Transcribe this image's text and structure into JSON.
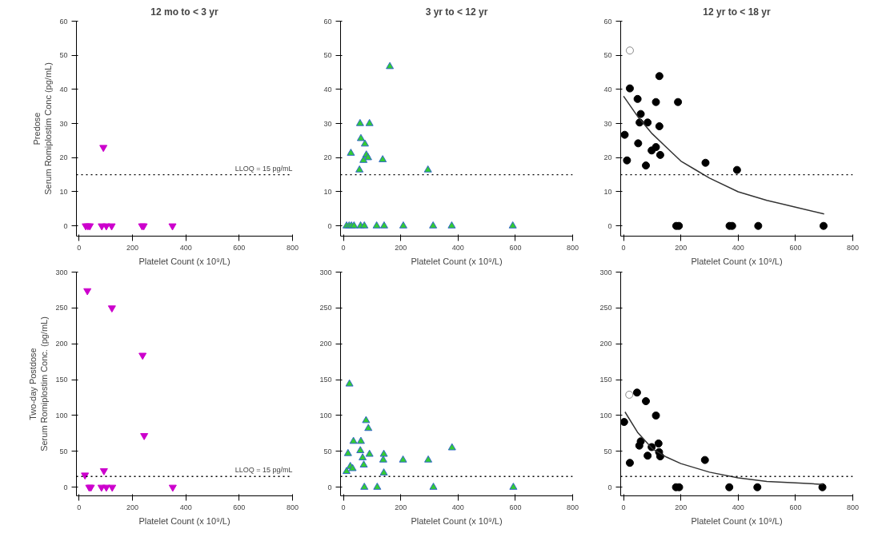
{
  "chart_data": [
    {
      "type": "scatter",
      "title": "12 mo to < 3 yr",
      "xlabel": "Platelet Count (x 10⁹/L)",
      "ylabel": "Predose\nSerum Romiplostim Conc (pg/mL)",
      "xlim": [
        -10,
        800
      ],
      "ylim": [
        -3,
        60
      ],
      "xticks": [
        0,
        200,
        400,
        600,
        800
      ],
      "yticks": [
        0,
        10,
        20,
        30,
        40,
        50,
        60
      ],
      "grid": false,
      "marker": "triangle",
      "series": [
        {
          "color": "#cc00cc",
          "x": [
            25,
            33,
            40,
            85,
            102,
            122,
            236,
            242,
            350,
            91
          ],
          "values": [
            0,
            0,
            0,
            0,
            0,
            0,
            0,
            0,
            0,
            23
          ]
        }
      ],
      "ref_lines": [
        {
          "axis": "y",
          "value": 15,
          "label": "LLOQ = 15 pg/mL",
          "line_style": "dotted",
          "color": "#000000"
        }
      ]
    },
    {
      "type": "scatter",
      "title": "3 yr to < 12 yr",
      "xlabel": "Platelet Count (x 10⁹/L)",
      "xlim": [
        -10,
        800
      ],
      "ylim": [
        -3,
        60
      ],
      "xticks": [
        0,
        200,
        400,
        600,
        800
      ],
      "yticks": [
        0,
        10,
        20,
        30,
        40,
        50,
        60
      ],
      "grid": false,
      "marker": "triangle",
      "series": [
        {
          "color": "#33cc33",
          "x": [
            162,
            58,
            91,
            61,
            75,
            26,
            80,
            86,
            70,
            137,
            56,
            295,
            11,
            20,
            28,
            37,
            60,
            73,
            116,
            142,
            209,
            313,
            378,
            591
          ],
          "values": [
            46.7,
            30,
            30,
            25.6,
            24,
            21.3,
            20.8,
            20,
            19.2,
            19.4,
            16.4,
            16.4,
            0,
            0,
            0,
            0,
            0,
            0,
            0,
            0,
            0,
            0,
            0,
            0
          ]
        }
      ],
      "ref_lines": [
        {
          "axis": "y",
          "value": 15,
          "line_style": "dotted",
          "color": "#000000"
        }
      ]
    },
    {
      "type": "scatter",
      "title": "12 yr to < 18 yr",
      "xlabel": "Platelet Count (x 10⁹/L)",
      "xlim": [
        -10,
        800
      ],
      "ylim": [
        -3,
        60
      ],
      "xticks": [
        0,
        200,
        400,
        600,
        800
      ],
      "yticks": [
        0,
        10,
        20,
        30,
        40,
        50,
        60
      ],
      "grid": false,
      "marker": "circle",
      "series": [
        {
          "color": "#ffffff",
          "x": [
            22
          ],
          "values": [
            51.4
          ]
        },
        {
          "color": "#000000",
          "x": [
            22,
            4,
            12,
            49,
            60,
            56,
            84,
            51,
            78,
            98,
            113,
            113,
            125,
            125,
            128,
            190,
            286,
            396,
            184,
            193,
            370,
            379,
            470,
            698
          ],
          "values": [
            40.3,
            26.7,
            19.2,
            37.2,
            32.8,
            30.3,
            30.3,
            24.2,
            17.7,
            22.1,
            23.1,
            36.3,
            43.9,
            29.2,
            20.8,
            36.3,
            18.5,
            16.4,
            0,
            0,
            0,
            0,
            0,
            0
          ]
        },
        {
          "type": "line",
          "marker": "none",
          "color": "#333333",
          "x": [
            0,
            50,
            100,
            150,
            200,
            250,
            300,
            400,
            500,
            600,
            700
          ],
          "values": [
            38,
            32,
            27,
            23,
            19,
            16.5,
            14,
            10,
            7.5,
            5.5,
            3.5
          ]
        }
      ],
      "ref_lines": [
        {
          "axis": "y",
          "value": 15,
          "line_style": "dotted",
          "color": "#000000"
        }
      ]
    },
    {
      "type": "scatter",
      "xlabel": "Platelet Count (x 10⁹/L)",
      "ylabel": "Two-day Postdose\nSerum Romiplostim Conc. (pg/mL)",
      "xlim": [
        -10,
        800
      ],
      "ylim": [
        -12,
        300
      ],
      "xticks": [
        0,
        200,
        400,
        600,
        800
      ],
      "yticks": [
        0,
        50,
        100,
        150,
        200,
        250,
        300
      ],
      "grid": false,
      "marker": "triangle",
      "series": [
        {
          "color": "#cc00cc",
          "x": [
            31,
            123,
            238,
            244,
            22,
            93,
            38,
            44,
            84,
            102,
            124,
            351
          ],
          "values": [
            274,
            250,
            184,
            72,
            17,
            23,
            0,
            0,
            0,
            0,
            0,
            0
          ]
        }
      ],
      "ref_lines": [
        {
          "axis": "y",
          "value": 15,
          "label": "LLOQ = 15 pg/mL",
          "line_style": "dotted",
          "color": "#000000"
        }
      ]
    },
    {
      "type": "scatter",
      "xlabel": "Platelet Count (x 10⁹/L)",
      "xlim": [
        -10,
        800
      ],
      "ylim": [
        -12,
        300
      ],
      "xticks": [
        0,
        200,
        400,
        600,
        800
      ],
      "yticks": [
        0,
        50,
        100,
        150,
        200,
        250,
        300
      ],
      "grid": false,
      "marker": "triangle",
      "series": [
        {
          "color": "#33cc33",
          "x": [
            21,
            79,
            87,
            35,
            61,
            16,
            59,
            91,
            141,
            67,
            24,
            32,
            11,
            71,
            139,
            208,
            296,
            379,
            141,
            73,
            118,
            314,
            593
          ],
          "values": [
            144,
            93,
            82,
            64,
            64,
            47,
            51,
            46,
            46,
            41,
            29,
            26,
            22,
            31,
            38,
            38,
            38,
            55,
            20,
            0,
            0,
            0,
            0
          ]
        }
      ],
      "ref_lines": [
        {
          "axis": "y",
          "value": 15,
          "line_style": "dotted",
          "color": "#000000"
        }
      ]
    },
    {
      "type": "scatter",
      "xlabel": "Platelet Count (x 10⁹/L)",
      "xlim": [
        -10,
        800
      ],
      "ylim": [
        -12,
        300
      ],
      "xticks": [
        0,
        200,
        400,
        600,
        800
      ],
      "yticks": [
        0,
        50,
        100,
        150,
        200,
        250,
        300
      ],
      "grid": false,
      "marker": "circle",
      "series": [
        {
          "color": "#ffffff",
          "x": [
            20
          ],
          "values": [
            129
          ]
        },
        {
          "color": "#000000",
          "x": [
            47,
            78,
            113,
            2,
            22,
            55,
            60,
            98,
            84,
            122,
            124,
            128,
            284,
            183,
            194,
            369,
            467,
            694
          ],
          "values": [
            132,
            120,
            100,
            91,
            34,
            58,
            64,
            56,
            44,
            61,
            49,
            43,
            38,
            0,
            0,
            0,
            0,
            0
          ]
        },
        {
          "type": "line",
          "marker": "none",
          "color": "#333333",
          "x": [
            5,
            50,
            100,
            150,
            200,
            300,
            400,
            500,
            600,
            695
          ],
          "values": [
            105,
            76,
            54,
            42,
            33,
            21,
            13,
            8,
            6,
            4
          ]
        }
      ],
      "ref_lines": [
        {
          "axis": "y",
          "value": 15,
          "line_style": "dotted",
          "color": "#000000"
        }
      ]
    }
  ]
}
